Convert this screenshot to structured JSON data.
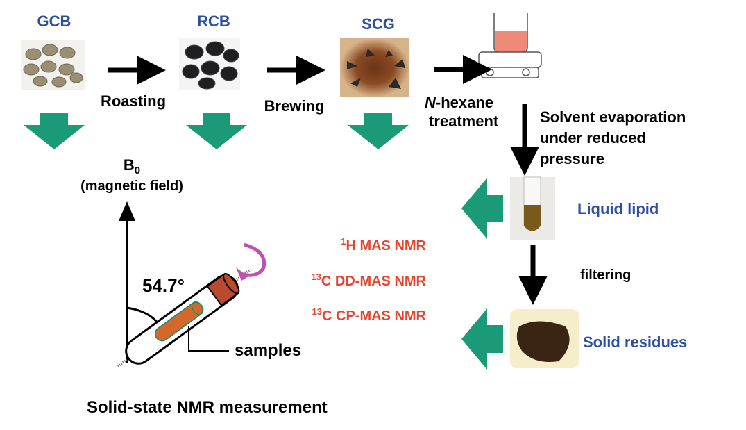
{
  "colors": {
    "label_blue": "#2b4fa3",
    "green_arrow": "#1b9a78",
    "nmr_red": "#e8432e",
    "spin_magenta": "#c24fb5",
    "sample_orange": "#d2692a",
    "cap_brown": "#b84a2e"
  },
  "stages": [
    {
      "label": "GCB"
    },
    {
      "label": "RCB"
    },
    {
      "label": "SCG"
    }
  ],
  "steps": {
    "roasting": "Roasting",
    "brewing": "Brewing",
    "hexane_italic": "N",
    "hexane_rest": "-hexane",
    "hexane_line2": "treatment",
    "evap_line1": "Solvent evaporation",
    "evap_line2": "under reduced",
    "evap_line3": "pressure",
    "filtering": "filtering"
  },
  "products": {
    "liquid": "Liquid lipid",
    "solid": "Solid residues"
  },
  "nmr": {
    "b0_main": "B",
    "b0_sub": "0",
    "b0_desc": "(magnetic field)",
    "angle": "54.7°",
    "samples": "samples",
    "methods": [
      {
        "sup": "1",
        "text": "H MAS NMR"
      },
      {
        "sup": "13",
        "text": "C DD-MAS NMR"
      },
      {
        "sup": "13",
        "text": "C CP-MAS NMR"
      }
    ],
    "caption": "Solid-state NMR measurement"
  }
}
